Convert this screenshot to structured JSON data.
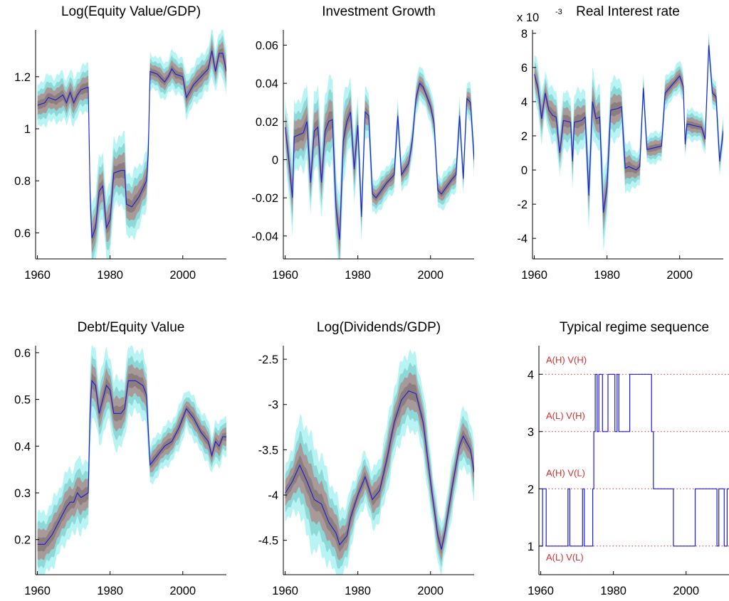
{
  "colors": {
    "outer_band": "#b8f4f4",
    "mid_band": "#8fd8d8",
    "inner_band": "#a99a9a",
    "core_band": "#8c7e7e",
    "median_line": "#1c1cd8",
    "regime_line": "#1c1cd8",
    "regime_guide": "#d03030"
  },
  "chart_data": [
    {
      "type": "area",
      "title": "Log(Equity Value/GDP)",
      "xlim": [
        1959.5,
        2012
      ],
      "ylim": [
        0.5,
        1.38
      ],
      "xticks": [
        1960,
        1980,
        2000
      ],
      "yticks": [
        0.6,
        0.8,
        1,
        1.2
      ],
      "ytick_labels": [
        "0.6",
        "0.8",
        "1",
        "1.2"
      ],
      "band_scale": 1.0,
      "median": [
        [
          1960,
          1.09
        ],
        [
          1962,
          1.1
        ],
        [
          1963,
          1.12
        ],
        [
          1965,
          1.11
        ],
        [
          1967,
          1.13
        ],
        [
          1968,
          1.1
        ],
        [
          1969,
          1.14
        ],
        [
          1970,
          1.1
        ],
        [
          1971,
          1.13
        ],
        [
          1972,
          1.15
        ],
        [
          1974,
          1.16
        ],
        [
          1974.5,
          0.74
        ],
        [
          1975,
          0.58
        ],
        [
          1976,
          0.62
        ],
        [
          1977,
          0.76
        ],
        [
          1978,
          0.78
        ],
        [
          1979,
          0.62
        ],
        [
          1980,
          0.65
        ],
        [
          1981,
          0.83
        ],
        [
          1983,
          0.84
        ],
        [
          1984,
          0.84
        ],
        [
          1984.5,
          0.71
        ],
        [
          1986,
          0.7
        ],
        [
          1988,
          0.74
        ],
        [
          1990,
          0.8
        ],
        [
          1990.5,
          0.9
        ],
        [
          1991,
          1.22
        ],
        [
          1993,
          1.21
        ],
        [
          1995,
          1.18
        ],
        [
          1996,
          1.2
        ],
        [
          1997,
          1.23
        ],
        [
          1998,
          1.21
        ],
        [
          2000,
          1.2
        ],
        [
          2001,
          1.12
        ],
        [
          2003,
          1.17
        ],
        [
          2005,
          1.2
        ],
        [
          2007,
          1.23
        ],
        [
          2008,
          1.3
        ],
        [
          2009,
          1.22
        ],
        [
          2010,
          1.29
        ],
        [
          2011,
          1.29
        ],
        [
          2012,
          1.22
        ]
      ],
      "spread": [
        [
          1960,
          0.04
        ],
        [
          1974,
          0.04
        ],
        [
          1975,
          0.06
        ],
        [
          1984,
          0.06
        ],
        [
          1990,
          0.05
        ],
        [
          1991,
          0.03
        ],
        [
          2012,
          0.04
        ]
      ]
    },
    {
      "type": "area",
      "title": "Investment Growth",
      "xlim": [
        1959.5,
        2012
      ],
      "ylim": [
        -0.052,
        0.068
      ],
      "xticks": [
        1960,
        1980,
        2000
      ],
      "yticks": [
        -0.04,
        -0.02,
        0,
        0.02,
        0.04,
        0.06
      ],
      "ytick_labels": [
        "-0.04",
        "-0.02",
        "0",
        "0.02",
        "0.04",
        "0.06"
      ],
      "band_scale": 1.0,
      "median": [
        [
          1960,
          0.017
        ],
        [
          1961,
          0.0
        ],
        [
          1962,
          -0.02
        ],
        [
          1962.5,
          0.012
        ],
        [
          1965,
          0.014
        ],
        [
          1966,
          0.02
        ],
        [
          1967,
          -0.012
        ],
        [
          1968,
          0.015
        ],
        [
          1969,
          0.017
        ],
        [
          1970,
          -0.012
        ],
        [
          1971,
          0.015
        ],
        [
          1972,
          0.02
        ],
        [
          1973,
          0.021
        ],
        [
          1974,
          -0.025
        ],
        [
          1975,
          -0.042
        ],
        [
          1976,
          0.01
        ],
        [
          1977,
          0.02
        ],
        [
          1978,
          0.025
        ],
        [
          1979,
          -0.005
        ],
        [
          1980,
          0.018
        ],
        [
          1981,
          -0.03
        ],
        [
          1982,
          0.025
        ],
        [
          1983,
          0.023
        ],
        [
          1984,
          -0.018
        ],
        [
          1985,
          -0.02
        ],
        [
          1988,
          -0.012
        ],
        [
          1990,
          -0.008
        ],
        [
          1991,
          0.023
        ],
        [
          1992,
          -0.008
        ],
        [
          1994,
          -0.002
        ],
        [
          1995,
          0.01
        ],
        [
          1996,
          0.032
        ],
        [
          1997,
          0.04
        ],
        [
          1998,
          0.038
        ],
        [
          2000,
          0.028
        ],
        [
          2001,
          0.019
        ],
        [
          2002,
          -0.016
        ],
        [
          2003,
          -0.018
        ],
        [
          2006,
          -0.01
        ],
        [
          2007,
          -0.008
        ],
        [
          2008,
          0.023
        ],
        [
          2009,
          -0.01
        ],
        [
          2010,
          0.032
        ],
        [
          2011,
          0.03
        ],
        [
          2012,
          0.0
        ]
      ],
      "spread": [
        [
          1960,
          0.008
        ],
        [
          1975,
          0.01
        ],
        [
          1985,
          0.004
        ],
        [
          2012,
          0.004
        ]
      ]
    },
    {
      "type": "area",
      "title": "Real Interest rate",
      "exponent_label": "x 10",
      "exponent_power": "-3",
      "xlim": [
        1959.5,
        2012
      ],
      "ylim": [
        -5.2,
        8.2
      ],
      "xticks": [
        1960,
        1980,
        2000
      ],
      "yticks": [
        -4,
        -2,
        0,
        2,
        4,
        6,
        8
      ],
      "ytick_labels": [
        "-4",
        "-2",
        "0",
        "2",
        "4",
        "6",
        "8"
      ],
      "band_scale": 1.0,
      "median": [
        [
          1960,
          5.6
        ],
        [
          1961,
          4.8
        ],
        [
          1962,
          3.0
        ],
        [
          1963,
          4.5
        ],
        [
          1964,
          3.5
        ],
        [
          1965,
          3.2
        ],
        [
          1966,
          3.1
        ],
        [
          1967,
          1.0
        ],
        [
          1968,
          2.9
        ],
        [
          1970,
          2.8
        ],
        [
          1970.5,
          0.5
        ],
        [
          1971,
          2.8
        ],
        [
          1973,
          2.9
        ],
        [
          1974,
          3.1
        ],
        [
          1975,
          -1.5
        ],
        [
          1976,
          4.0
        ],
        [
          1977,
          3.0
        ],
        [
          1978,
          3.1
        ],
        [
          1979,
          -2.5
        ],
        [
          1980,
          -1.0
        ],
        [
          1981,
          3.5
        ],
        [
          1983,
          3.6
        ],
        [
          1984,
          3.7
        ],
        [
          1985,
          0.1
        ],
        [
          1986,
          0.2
        ],
        [
          1988,
          0.0
        ],
        [
          1989,
          0.2
        ],
        [
          1990,
          4.8
        ],
        [
          1991,
          1.2
        ],
        [
          1993,
          1.3
        ],
        [
          1995,
          1.4
        ],
        [
          1996,
          4.5
        ],
        [
          1998,
          5.0
        ],
        [
          2000,
          5.5
        ],
        [
          2001,
          4.9
        ],
        [
          2001.5,
          1.5
        ],
        [
          2002,
          2.7
        ],
        [
          2004,
          2.6
        ],
        [
          2006,
          2.5
        ],
        [
          2007,
          1.8
        ],
        [
          2008,
          7.3
        ],
        [
          2009,
          4.5
        ],
        [
          2010,
          4.3
        ],
        [
          2011,
          0.5
        ],
        [
          2012,
          2.3
        ]
      ],
      "spread": [
        [
          1960,
          0.6
        ],
        [
          1980,
          0.9
        ],
        [
          1990,
          0.4
        ],
        [
          2012,
          0.4
        ]
      ]
    },
    {
      "type": "area",
      "title": "Debt/Equity Value",
      "xlim": [
        1959.5,
        2012
      ],
      "ylim": [
        0.125,
        0.615
      ],
      "xticks": [
        1960,
        1980,
        2000
      ],
      "yticks": [
        0.2,
        0.3,
        0.4,
        0.5,
        0.6
      ],
      "ytick_labels": [
        "0.2",
        "0.3",
        "0.4",
        "0.5",
        "0.6"
      ],
      "band_scale": 1.0,
      "median": [
        [
          1960,
          0.19
        ],
        [
          1962,
          0.19
        ],
        [
          1964,
          0.21
        ],
        [
          1966,
          0.24
        ],
        [
          1968,
          0.27
        ],
        [
          1969,
          0.28
        ],
        [
          1970,
          0.28
        ],
        [
          1971,
          0.3
        ],
        [
          1972,
          0.29
        ],
        [
          1974,
          0.3
        ],
        [
          1974.5,
          0.48
        ],
        [
          1975,
          0.54
        ],
        [
          1976,
          0.53
        ],
        [
          1977,
          0.47
        ],
        [
          1978,
          0.5
        ],
        [
          1979,
          0.53
        ],
        [
          1980,
          0.52
        ],
        [
          1981,
          0.47
        ],
        [
          1983,
          0.47
        ],
        [
          1984,
          0.48
        ],
        [
          1985,
          0.54
        ],
        [
          1987,
          0.54
        ],
        [
          1989,
          0.53
        ],
        [
          1990,
          0.51
        ],
        [
          1991,
          0.36
        ],
        [
          1993,
          0.38
        ],
        [
          1995,
          0.4
        ],
        [
          1997,
          0.41
        ],
        [
          1999,
          0.44
        ],
        [
          2001,
          0.48
        ],
        [
          2003,
          0.46
        ],
        [
          2005,
          0.43
        ],
        [
          2007,
          0.41
        ],
        [
          2008,
          0.38
        ],
        [
          2009,
          0.41
        ],
        [
          2010,
          0.4
        ],
        [
          2011,
          0.42
        ],
        [
          2012,
          0.42
        ]
      ],
      "spread": [
        [
          1960,
          0.03
        ],
        [
          1975,
          0.035
        ],
        [
          1990,
          0.03
        ],
        [
          1991,
          0.02
        ],
        [
          2012,
          0.02
        ]
      ]
    },
    {
      "type": "area",
      "title": "Log(Dividends/GDP)",
      "xlim": [
        1959.5,
        2012
      ],
      "ylim": [
        -4.88,
        -2.35
      ],
      "xticks": [
        1960,
        1980,
        2000
      ],
      "yticks": [
        -4.5,
        -4,
        -3.5,
        -3,
        -2.5
      ],
      "ytick_labels": [
        "-4.5",
        "-4",
        "-3.5",
        "-3",
        "-2.5"
      ],
      "band_scale": 1.0,
      "median": [
        [
          1960,
          -3.98
        ],
        [
          1962,
          -3.85
        ],
        [
          1964,
          -3.67
        ],
        [
          1966,
          -3.85
        ],
        [
          1968,
          -4.05
        ],
        [
          1970,
          -4.1
        ],
        [
          1972,
          -4.3
        ],
        [
          1974,
          -4.42
        ],
        [
          1975,
          -4.55
        ],
        [
          1977,
          -4.45
        ],
        [
          1978,
          -4.25
        ],
        [
          1980,
          -4.0
        ],
        [
          1982,
          -3.8
        ],
        [
          1984,
          -4.05
        ],
        [
          1986,
          -3.95
        ],
        [
          1988,
          -3.6
        ],
        [
          1990,
          -3.2
        ],
        [
          1992,
          -2.95
        ],
        [
          1994,
          -2.85
        ],
        [
          1996,
          -2.88
        ],
        [
          1998,
          -3.2
        ],
        [
          2000,
          -3.85
        ],
        [
          2002,
          -4.45
        ],
        [
          2003,
          -4.6
        ],
        [
          2004,
          -4.4
        ],
        [
          2006,
          -3.9
        ],
        [
          2008,
          -3.45
        ],
        [
          2009,
          -3.35
        ],
        [
          2011,
          -3.5
        ],
        [
          2012,
          -3.75
        ]
      ],
      "spread": [
        [
          1960,
          0.12
        ],
        [
          1966,
          0.28
        ],
        [
          1972,
          0.22
        ],
        [
          1980,
          0.12
        ],
        [
          1994,
          0.2
        ],
        [
          2003,
          0.12
        ],
        [
          2012,
          0.15
        ]
      ]
    },
    {
      "type": "line",
      "title": "Typical regime sequence",
      "xlim": [
        1959.5,
        2012
      ],
      "ylim": [
        0.5,
        4.5
      ],
      "xticks": [
        1960,
        1980,
        2000
      ],
      "yticks": [
        1,
        2,
        3,
        4
      ],
      "ytick_labels": [
        "1",
        "2",
        "3",
        "4"
      ],
      "regime_labels": [
        "A(L) V(L)",
        "A(H) V(L)",
        "A(L) V(H)",
        "A(H) V(H)"
      ],
      "series": [
        [
          1960,
          1
        ],
        [
          1960.5,
          2
        ],
        [
          1961,
          2
        ],
        [
          1961.5,
          1
        ],
        [
          1967,
          1
        ],
        [
          1967.5,
          2
        ],
        [
          1968,
          1
        ],
        [
          1971,
          1
        ],
        [
          1971.5,
          2
        ],
        [
          1972,
          1
        ],
        [
          1974,
          1
        ],
        [
          1974.3,
          2
        ],
        [
          1974.6,
          3
        ],
        [
          1975,
          4
        ],
        [
          1975.5,
          3
        ],
        [
          1976,
          4
        ],
        [
          1977,
          3
        ],
        [
          1978,
          3
        ],
        [
          1978.5,
          4
        ],
        [
          1980,
          4
        ],
        [
          1980.4,
          3
        ],
        [
          1981,
          4
        ],
        [
          1981.5,
          3
        ],
        [
          1984,
          3
        ],
        [
          1984.5,
          4
        ],
        [
          1990,
          4
        ],
        [
          1990.5,
          3
        ],
        [
          1991,
          2
        ],
        [
          1996,
          2
        ],
        [
          1996.5,
          1
        ],
        [
          2002,
          1
        ],
        [
          2002.5,
          2
        ],
        [
          2008,
          2
        ],
        [
          2008.5,
          1
        ],
        [
          2009,
          2
        ],
        [
          2010,
          2
        ],
        [
          2010.5,
          1
        ],
        [
          2011,
          1
        ],
        [
          2011.3,
          2
        ],
        [
          2012,
          2
        ]
      ]
    }
  ]
}
